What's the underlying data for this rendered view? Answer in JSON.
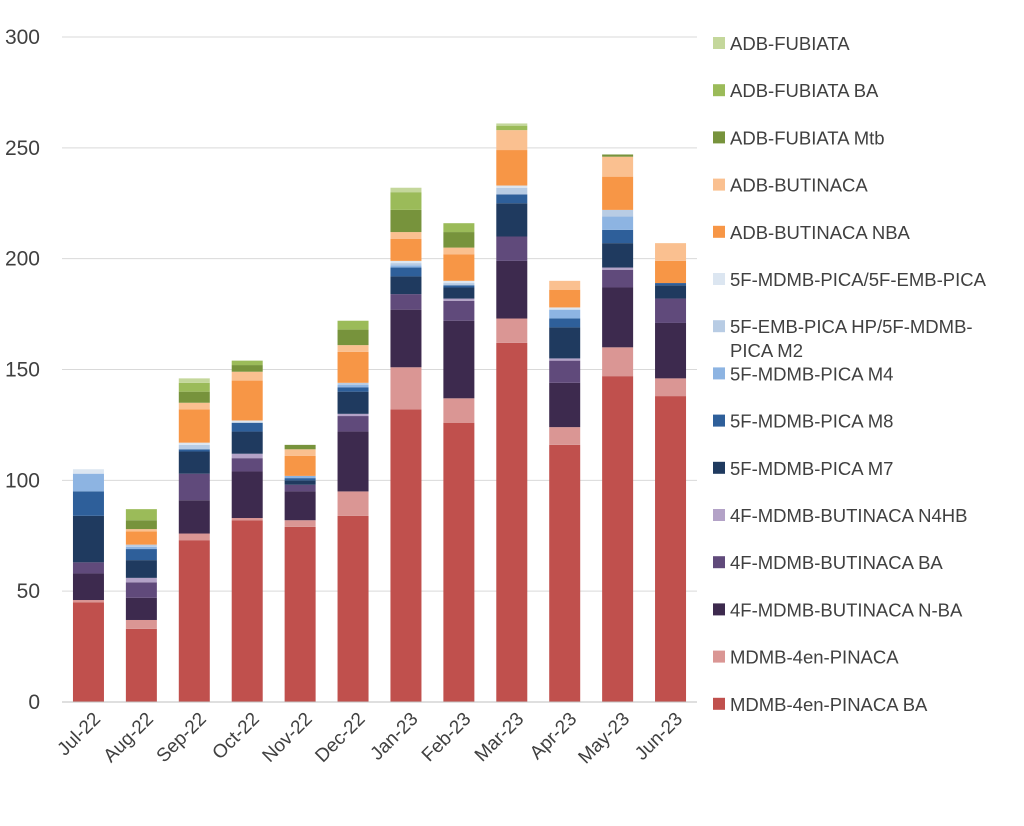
{
  "chart_data": {
    "type": "bar",
    "stacked": true,
    "title": "",
    "xlabel": "",
    "ylabel": "",
    "ylim": [
      0,
      300
    ],
    "yticks": [
      0,
      50,
      100,
      150,
      200,
      250,
      300
    ],
    "grid": true,
    "legend_position": "right",
    "categories": [
      "Jul-22",
      "Aug-22",
      "Sep-22",
      "Oct-22",
      "Nov-22",
      "Dec-22",
      "Jan-23",
      "Feb-23",
      "Mar-23",
      "Apr-23",
      "May-23",
      "Jun-23"
    ],
    "series": [
      {
        "name": "MDMB-4en-PINACA BA",
        "color": "#c0504d",
        "values": [
          45,
          33,
          73,
          82,
          79,
          84,
          132,
          126,
          162,
          116,
          147,
          138
        ]
      },
      {
        "name": "MDMB-4en-PINACA",
        "color": "#da9694",
        "values": [
          1,
          4,
          3,
          1,
          3,
          11,
          19,
          11,
          11,
          8,
          13,
          8
        ]
      },
      {
        "name": "4F-MDMB-BUTINACA N-BA",
        "color": "#3d2a4e",
        "values": [
          12,
          10,
          15,
          21,
          13,
          27,
          26,
          35,
          26,
          20,
          27,
          25
        ]
      },
      {
        "name": "4F-MDMB-BUTINACA BA",
        "color": "#604a7b",
        "values": [
          5,
          7,
          12,
          6,
          3,
          7,
          7,
          9,
          11,
          10,
          8,
          11
        ]
      },
      {
        "name": "4F-MDMB-BUTINACA N4HB",
        "color": "#b3a2c7",
        "values": [
          0,
          2,
          0,
          2,
          0,
          1,
          0,
          1,
          0,
          1,
          1,
          0
        ]
      },
      {
        "name": "5F-MDMB-PICA M7",
        "color": "#1f3a5f",
        "values": [
          21,
          8,
          10,
          10,
          2,
          10,
          8,
          5,
          15,
          14,
          11,
          6
        ]
      },
      {
        "name": "5F-MDMB-PICA M8",
        "color": "#2e5f9a",
        "values": [
          11,
          5,
          1,
          4,
          1,
          2,
          4,
          1,
          4,
          4,
          6,
          1
        ]
      },
      {
        "name": "5F-MDMB-PICA M4",
        "color": "#8db4e2",
        "values": [
          8,
          1,
          0,
          0,
          1,
          1,
          1,
          0,
          0,
          4,
          6,
          0
        ]
      },
      {
        "name": "5F-EMB-PICA HP/5F-MDMB-PICA M2",
        "color": "#b8cce4",
        "values": [
          0,
          1,
          2,
          0,
          0,
          1,
          1,
          1,
          3,
          0,
          3,
          0
        ]
      },
      {
        "name": "5F-MDMB-PICA/5F-EMB-PICA",
        "color": "#dce6f1",
        "values": [
          2,
          0,
          1,
          1,
          0,
          0,
          1,
          1,
          1,
          1,
          0,
          0
        ]
      },
      {
        "name": "ADB-BUTINACA NBA",
        "color": "#f79646",
        "values": [
          0,
          6,
          15,
          18,
          9,
          14,
          10,
          12,
          16,
          8,
          15,
          10
        ]
      },
      {
        "name": "ADB-BUTINACA",
        "color": "#fac090",
        "values": [
          0,
          1,
          3,
          4,
          3,
          3,
          3,
          3,
          9,
          4,
          9,
          8
        ]
      },
      {
        "name": "ADB-FUBIATA Mtb",
        "color": "#77933c",
        "values": [
          0,
          4,
          5,
          3,
          2,
          7,
          10,
          7,
          0,
          0,
          1,
          0
        ]
      },
      {
        "name": "ADB-FUBIATA BA",
        "color": "#9bbb59",
        "values": [
          0,
          5,
          4,
          2,
          0,
          4,
          8,
          4,
          2,
          0,
          0,
          0
        ]
      },
      {
        "name": "ADB-FUBIATA",
        "color": "#c4d79b",
        "values": [
          0,
          0,
          2,
          0,
          0,
          0,
          2,
          0,
          1,
          0,
          0,
          0
        ]
      }
    ],
    "legend_order_top_to_bottom": [
      {
        "name": "ADB-FUBIATA",
        "color": "#c4d79b"
      },
      {
        "name": "ADB-FUBIATA BA",
        "color": "#9bbb59"
      },
      {
        "name": "ADB-FUBIATA Mtb",
        "color": "#77933c"
      },
      {
        "name": "ADB-BUTINACA",
        "color": "#fac090"
      },
      {
        "name": "ADB-BUTINACA NBA",
        "color": "#f79646"
      },
      {
        "name": "5F-MDMB-PICA/5F-EMB-PICA",
        "color": "#dce6f1"
      },
      {
        "name": "5F-EMB-PICA HP/5F-MDMB-PICA M2",
        "color": "#b8cce4",
        "lines": [
          "5F-EMB-PICA HP/5F-MDMB-",
          "PICA M2"
        ]
      },
      {
        "name": "5F-MDMB-PICA M4",
        "color": "#8db4e2"
      },
      {
        "name": "5F-MDMB-PICA M8",
        "color": "#2e5f9a"
      },
      {
        "name": "5F-MDMB-PICA M7",
        "color": "#1f3a5f"
      },
      {
        "name": "4F-MDMB-BUTINACA N4HB",
        "color": "#b3a2c7"
      },
      {
        "name": "4F-MDMB-BUTINACA BA",
        "color": "#604a7b"
      },
      {
        "name": "4F-MDMB-BUTINACA N-BA",
        "color": "#3d2a4e"
      },
      {
        "name": "MDMB-4en-PINACA",
        "color": "#da9694"
      },
      {
        "name": "MDMB-4en-PINACA BA",
        "color": "#c0504d"
      }
    ]
  }
}
